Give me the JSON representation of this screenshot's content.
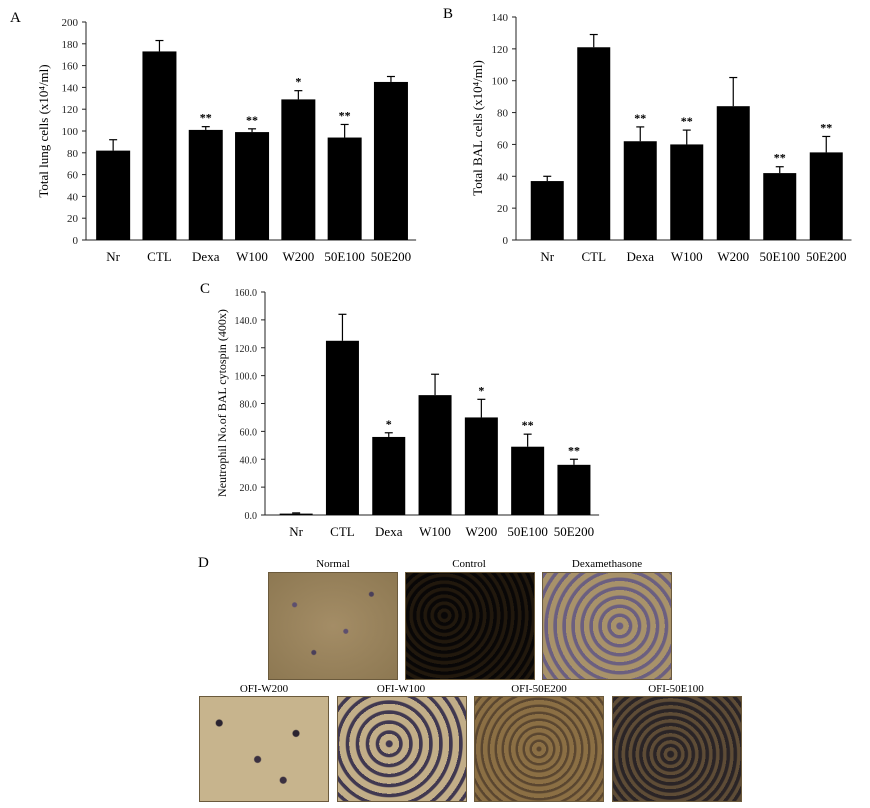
{
  "panels": {
    "a": "A",
    "b": "B",
    "c": "C",
    "d": "D"
  },
  "chart_data": [
    {
      "type": "bar",
      "ylabel": "Total lung cells (x10⁴/ml)",
      "ylim": [
        0,
        200
      ],
      "yticks": [
        "0",
        "20",
        "40",
        "60",
        "80",
        "100",
        "120",
        "140",
        "160",
        "180",
        "200"
      ],
      "categories": [
        "Nr",
        "CTL",
        "Dexa",
        "W100",
        "W200",
        "50E100",
        "50E200"
      ],
      "values": [
        82,
        173,
        101,
        99,
        129,
        94,
        145
      ],
      "errors": [
        10,
        10,
        3,
        3,
        8,
        12,
        5
      ],
      "significance": [
        "",
        "",
        "**",
        "**",
        "*",
        "**",
        ""
      ]
    },
    {
      "type": "bar",
      "ylabel": "Total BAL cells (x10⁴/ml)",
      "ylim": [
        0,
        140
      ],
      "yticks": [
        "0",
        "20",
        "40",
        "60",
        "80",
        "100",
        "120",
        "140"
      ],
      "categories": [
        "Nr",
        "CTL",
        "Dexa",
        "W100",
        "W200",
        "50E100",
        "50E200"
      ],
      "values": [
        37,
        121,
        62,
        60,
        84,
        42,
        55
      ],
      "errors": [
        3,
        8,
        9,
        9,
        18,
        4,
        10
      ],
      "significance": [
        "",
        "",
        "**",
        "**",
        "",
        "**",
        "**"
      ]
    },
    {
      "type": "bar",
      "ylabel": "Neutrophil No.of BAL cytospin (400x)",
      "ylim": [
        0,
        160
      ],
      "yticks": [
        "0.0",
        "20.0",
        "40.0",
        "60.0",
        "80.0",
        "100.0",
        "120.0",
        "140.0",
        "160.0"
      ],
      "categories": [
        "Nr",
        "CTL",
        "Dexa",
        "W100",
        "W200",
        "50E100",
        "50E200"
      ],
      "values": [
        1,
        125,
        56,
        86,
        70,
        49,
        36
      ],
      "errors": [
        0.5,
        19,
        3,
        15,
        13,
        9,
        4
      ],
      "significance": [
        "",
        "",
        "*",
        "",
        "*",
        "**",
        "**"
      ]
    }
  ],
  "micrographs": {
    "normal": "Normal",
    "control": "Control",
    "dexa": "Dexamethasone",
    "w200": "OFI-W200",
    "w100": "OFI-W100",
    "e200": "OFI-50E200",
    "e100": "OFI-50E100"
  }
}
